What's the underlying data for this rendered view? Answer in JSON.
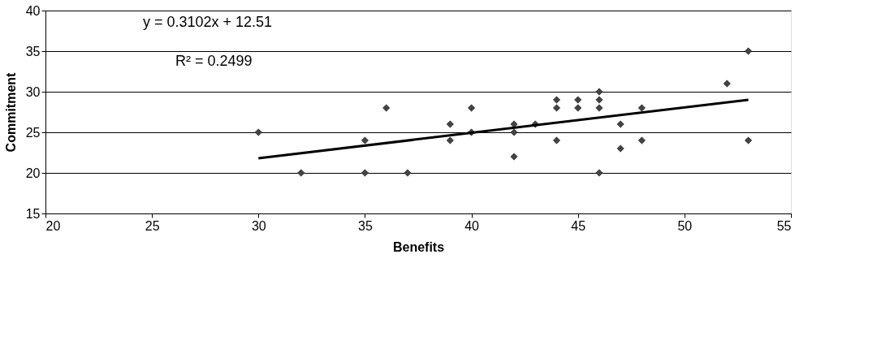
{
  "chart_data": {
    "type": "scatter",
    "xlabel": "Benefits",
    "ylabel": "Commitment",
    "xlim": [
      20,
      55
    ],
    "xticks": [
      20,
      25,
      30,
      35,
      40,
      45,
      50,
      55
    ],
    "ylim": [
      15,
      40
    ],
    "yticks": [
      15,
      20,
      25,
      30,
      35,
      40
    ],
    "grid": "y",
    "annotations": [
      "y = 0.3102x + 12.51",
      "R² = 0.2499"
    ],
    "series": [
      {
        "type": "scatter",
        "marker": "diamond",
        "color": "#444444",
        "x": [
          30,
          32,
          35,
          35,
          36,
          37,
          39,
          39,
          40,
          40,
          42,
          42,
          42,
          43,
          44,
          44,
          44,
          45,
          45,
          46,
          46,
          46,
          46,
          47,
          47,
          48,
          48,
          52,
          53,
          53
        ],
        "values": [
          25,
          20,
          24,
          20,
          28,
          20,
          26,
          24,
          28,
          25,
          26,
          25,
          22,
          26,
          29,
          28,
          24,
          29,
          28,
          30,
          29,
          28,
          20,
          26,
          23,
          28,
          24,
          31,
          35,
          24
        ]
      },
      {
        "type": "line",
        "color": "#000000",
        "x": [
          30,
          53
        ],
        "values": [
          21.8,
          29.0
        ]
      }
    ]
  }
}
